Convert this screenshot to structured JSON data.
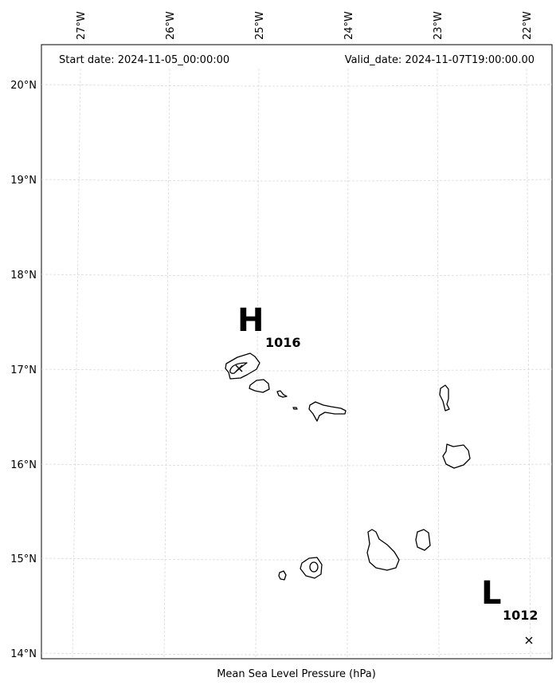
{
  "header": {
    "start_date": "Start date: 2024-11-05_00:00:00",
    "valid_date": "Valid_date: 2024-11-07T19:00:00.00"
  },
  "axes": {
    "lon_labels": [
      "27°W",
      "26°W",
      "25°W",
      "24°W",
      "23°W",
      "22°W"
    ],
    "lat_labels": [
      "20°N",
      "19°N",
      "18°N",
      "17°N",
      "16°N",
      "15°N",
      "14°N"
    ]
  },
  "pressure_systems": [
    {
      "type": "high",
      "letter": "H",
      "value": "1016",
      "lon": -25.0,
      "lat": 17.2
    },
    {
      "type": "low",
      "letter": "L",
      "value": "1012",
      "lon": -22.0,
      "lat": 14.15
    }
  ],
  "caption": "Mean Sea Level Pressure (hPa)"
}
